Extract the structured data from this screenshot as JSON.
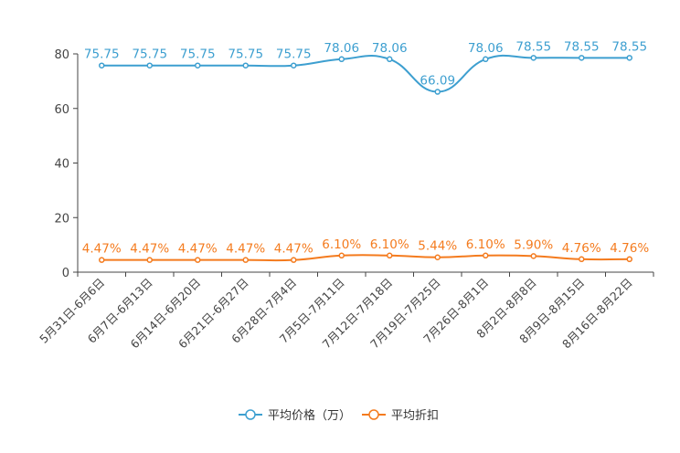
{
  "colors": {
    "price": "#3d9fd0",
    "discount": "#f47b1e",
    "axis": "#444444"
  },
  "chart_data": {
    "type": "line",
    "categories": [
      "5月31日-6月6日",
      "6月7日-6月13日",
      "6月14日-6月20日",
      "6月21日-6月27日",
      "6月28日-7月4日",
      "7月5日-7月11日",
      "7月12日-7月18日",
      "7月19日-7月25日",
      "7月26日-8月1日",
      "8月2日-8月8日",
      "8月9日-8月15日",
      "8月16日-8月22日"
    ],
    "ylim": [
      0,
      80
    ],
    "yticks": [
      "0",
      "20",
      "40",
      "60",
      "80"
    ],
    "series": [
      {
        "name": "平均价格（万）",
        "values": [
          75.75,
          75.75,
          75.75,
          75.75,
          75.75,
          78.06,
          78.06,
          66.09,
          78.06,
          78.55,
          78.55,
          78.55
        ],
        "labels": [
          "75.75",
          "75.75",
          "75.75",
          "75.75",
          "75.75",
          "78.06",
          "78.06",
          "66.09",
          "78.06",
          "78.55",
          "78.55",
          "78.55"
        ]
      },
      {
        "name": "平均折扣",
        "values": [
          4.47,
          4.47,
          4.47,
          4.47,
          4.47,
          6.1,
          6.1,
          5.44,
          6.1,
          5.9,
          4.76,
          4.76
        ],
        "labels": [
          "4.47%",
          "4.47%",
          "4.47%",
          "4.47%",
          "4.47%",
          "6.10%",
          "6.10%",
          "5.44%",
          "6.10%",
          "5.90%",
          "4.76%",
          "4.76%"
        ]
      }
    ]
  }
}
